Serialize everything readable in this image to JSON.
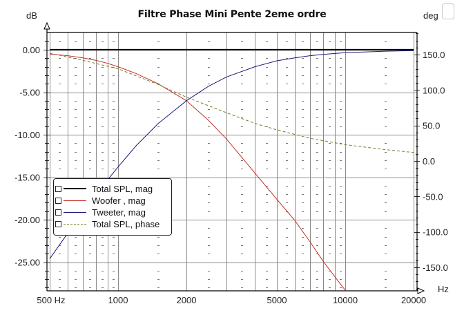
{
  "chart_data": {
    "type": "line",
    "title": "Filtre Phase Mini Pente 2eme ordre",
    "xlabel": "Hz",
    "ylabel": "dB",
    "y2label": "deg",
    "xscale": "log",
    "xlim": [
      480,
      21000
    ],
    "ylim": [
      -28.3,
      2.0
    ],
    "y2lim": [
      -182,
      213
    ],
    "x_ticks": [
      {
        "value": 500,
        "label": "500 Hz"
      },
      {
        "value": 1000,
        "label": "1000"
      },
      {
        "value": 2000,
        "label": "2000"
      },
      {
        "value": 5000,
        "label": "5000"
      },
      {
        "value": 10000,
        "label": "10000"
      },
      {
        "value": 20000,
        "label": "20000"
      }
    ],
    "y_ticks": [
      {
        "value": 0,
        "label": "0.00"
      },
      {
        "value": -5,
        "label": "-5.00"
      },
      {
        "value": -10,
        "label": "-10.00"
      },
      {
        "value": -15,
        "label": "-15.00"
      },
      {
        "value": -20,
        "label": "-20.00"
      },
      {
        "value": -25,
        "label": "-25.00"
      }
    ],
    "y2_ticks": [
      {
        "value": 150,
        "label": "150.0"
      },
      {
        "value": 100,
        "label": "100.0"
      },
      {
        "value": 50,
        "label": "50.0"
      },
      {
        "value": 0,
        "label": "0.0"
      },
      {
        "value": -50,
        "label": "-50.0"
      },
      {
        "value": -100,
        "label": "-100.0"
      },
      {
        "value": -150,
        "label": "-150.0"
      }
    ],
    "grid": true,
    "legend_position": "lower-left",
    "series": [
      {
        "name": "Total SPL, mag",
        "axis": "left",
        "color": "#000000",
        "style": "solid",
        "width": 2.2,
        "x": [
          500,
          1000,
          2000,
          5000,
          10000,
          20000
        ],
        "values": [
          0,
          0,
          0,
          0,
          0,
          0
        ]
      },
      {
        "name": "Woofer , mag",
        "axis": "left",
        "color": "#c0302a",
        "style": "solid",
        "width": 1,
        "x": [
          500,
          600,
          700,
          800,
          900,
          1000,
          1200,
          1500,
          2000,
          2500,
          3000,
          4000,
          5000,
          6000,
          7000,
          8000,
          9000,
          10000
        ],
        "values": [
          -0.5,
          -0.7,
          -0.95,
          -1.25,
          -1.6,
          -2.0,
          -2.8,
          -4.0,
          -6.0,
          -8.3,
          -10.5,
          -14.5,
          -17.6,
          -20.1,
          -22.6,
          -24.9,
          -26.7,
          -28.3
        ]
      },
      {
        "name": "Tweeter, mag",
        "axis": "left",
        "color": "#1a1a7a",
        "style": "solid",
        "width": 1,
        "x": [
          500,
          600,
          700,
          800,
          900,
          1000,
          1200,
          1500,
          2000,
          2500,
          3000,
          4000,
          5000,
          6000,
          7000,
          8000,
          10000,
          15000,
          20000
        ],
        "values": [
          -24.6,
          -21.6,
          -19.2,
          -17.1,
          -15.3,
          -13.8,
          -11.3,
          -8.7,
          -6.0,
          -4.3,
          -3.2,
          -2.0,
          -1.3,
          -0.95,
          -0.7,
          -0.55,
          -0.35,
          -0.17,
          -0.1
        ]
      },
      {
        "name": "Total SPL, phase",
        "axis": "right",
        "color": "#7a7a2a",
        "style": "dashed",
        "width": 1,
        "x": [
          500,
          700,
          1000,
          1500,
          2000,
          2500,
          3000,
          4000,
          5000,
          7000,
          10000,
          15000,
          20000
        ],
        "values": [
          152,
          142,
          130,
          108,
          90,
          78,
          68,
          53,
          44,
          32,
          23,
          16,
          12
        ]
      }
    ]
  },
  "legend": {
    "items": [
      {
        "label": "Total SPL, mag"
      },
      {
        "label": "Woofer , mag"
      },
      {
        "label": "Tweeter, mag"
      },
      {
        "label": "Total SPL, phase"
      }
    ]
  }
}
